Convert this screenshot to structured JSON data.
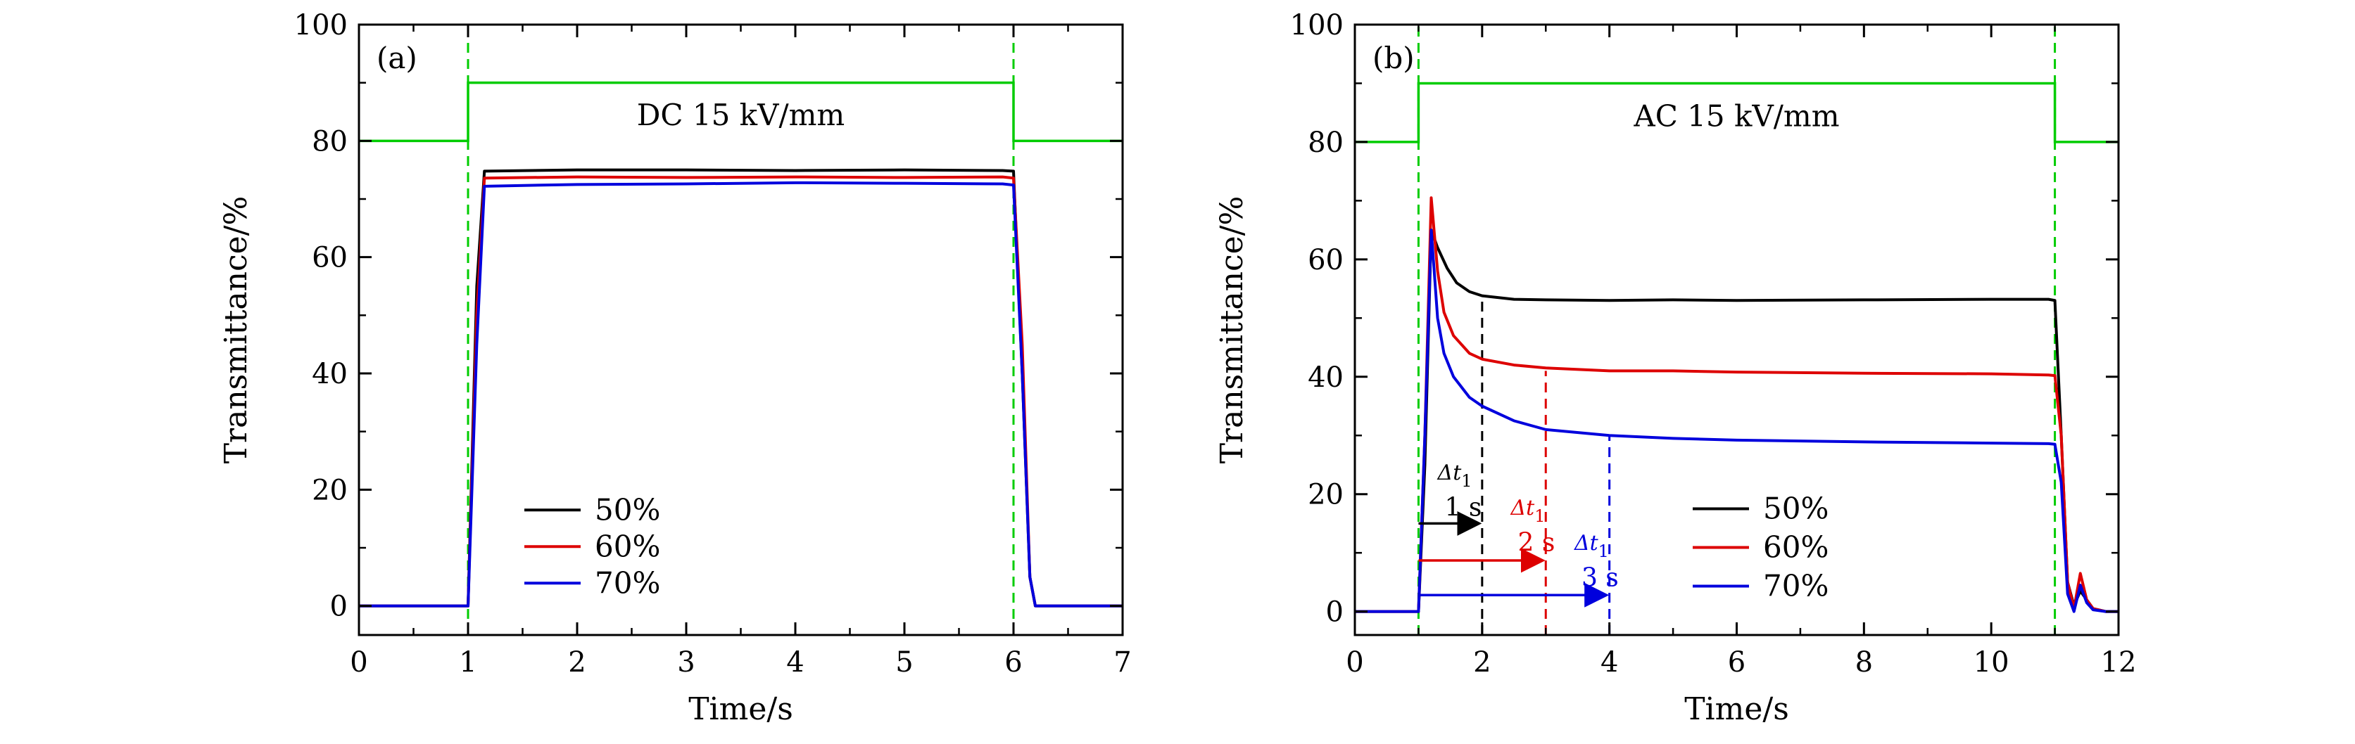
{
  "chart_data": [
    {
      "panel_label": "(a)",
      "type": "line",
      "annotation": "DC 15 kV/mm",
      "xlabel": "Time/s",
      "ylabel": "Transmittance/%",
      "xlim": [
        0,
        7
      ],
      "ylim": [
        -5,
        100
      ],
      "xticks": [
        0,
        1,
        2,
        3,
        4,
        5,
        6,
        7
      ],
      "yticks": [
        0,
        20,
        40,
        60,
        80,
        100
      ],
      "legend": {
        "position": "lower-left",
        "entries": [
          "50%",
          "60%",
          "70%"
        ]
      },
      "voltage_signal": {
        "color": "#00cc00",
        "x": [
          0,
          1,
          1,
          6,
          6,
          7
        ],
        "y": [
          80,
          80,
          90,
          90,
          80,
          80
        ]
      },
      "vertical_markers": [
        {
          "x": 1,
          "color": "#00cc00",
          "style": "dashed"
        },
        {
          "x": 6,
          "color": "#00cc00",
          "style": "dashed"
        }
      ],
      "series": [
        {
          "name": "50%",
          "color": "#000000",
          "x": [
            0,
            1.0,
            1.08,
            1.15,
            2,
            3,
            4,
            5,
            5.9,
            6.0,
            6.08,
            6.15,
            6.2,
            7
          ],
          "y": [
            0,
            0,
            55,
            74.8,
            75,
            75,
            74.9,
            75,
            74.9,
            74.8,
            40,
            5,
            0,
            0
          ]
        },
        {
          "name": "60%",
          "color": "#dd0000",
          "x": [
            0,
            1.0,
            1.08,
            1.15,
            2,
            3,
            4,
            5,
            5.9,
            6.0,
            6.08,
            6.15,
            6.2,
            7
          ],
          "y": [
            0,
            0,
            50,
            73.6,
            73.8,
            73.7,
            73.8,
            73.7,
            73.8,
            73.6,
            45,
            5,
            0,
            0
          ]
        },
        {
          "name": "70%",
          "color": "#0000dd",
          "x": [
            0,
            1.0,
            1.08,
            1.15,
            2,
            3,
            4,
            5,
            5.9,
            6.0,
            6.08,
            6.15,
            6.2,
            7
          ],
          "y": [
            0,
            0,
            45,
            72.2,
            72.5,
            72.6,
            72.8,
            72.7,
            72.6,
            72.4,
            40,
            5,
            0,
            0
          ]
        }
      ]
    },
    {
      "panel_label": "(b)",
      "type": "line",
      "annotation": "AC 15 kV/mm",
      "xlabel": "Time/s",
      "ylabel": "Transmittance/%",
      "xlim": [
        0,
        12
      ],
      "ylim": [
        -4,
        100
      ],
      "xticks": [
        0,
        2,
        4,
        6,
        8,
        10,
        12
      ],
      "yticks": [
        0,
        20,
        40,
        60,
        80,
        100
      ],
      "legend": {
        "position": "lower-right",
        "entries": [
          "50%",
          "60%",
          "70%"
        ]
      },
      "voltage_signal": {
        "color": "#00cc00",
        "x": [
          0,
          1,
          1,
          11,
          11,
          12
        ],
        "y": [
          80,
          80,
          90,
          90,
          80,
          80
        ]
      },
      "vertical_markers": [
        {
          "x": 1,
          "color": "#00cc00",
          "style": "dashed"
        },
        {
          "x": 11,
          "color": "#00cc00",
          "style": "dashed"
        },
        {
          "x": 2,
          "color": "#000000",
          "style": "dashed",
          "y_top": 54
        },
        {
          "x": 3,
          "color": "#dd0000",
          "style": "dashed",
          "y_top": 41
        },
        {
          "x": 4,
          "color": "#0000dd",
          "style": "dashed",
          "y_top": 30
        }
      ],
      "arrows": [
        {
          "color": "#000000",
          "x0": 1,
          "x1": 2,
          "y": 15,
          "label_top": "Δt",
          "label_sub": "1",
          "label_bottom": "1 s",
          "label_x": 1.3,
          "label_y_top": 22.5,
          "label_y_bottom": 17.5
        },
        {
          "color": "#dd0000",
          "x0": 1,
          "x1": 3,
          "y": 8.7,
          "label_top": "Δt",
          "label_sub": "1",
          "label_bottom": "2 s",
          "label_x": 2.45,
          "label_y_top": 16.5,
          "label_y_bottom": 11.5
        },
        {
          "color": "#0000dd",
          "x0": 1,
          "x1": 4,
          "y": 2.8,
          "label_top": "Δt",
          "label_sub": "1",
          "label_bottom": "3 s",
          "label_x": 3.45,
          "label_y_top": 10.5,
          "label_y_bottom": 5.5
        }
      ],
      "series": [
        {
          "name": "50%",
          "color": "#000000",
          "x": [
            0,
            1.0,
            1.1,
            1.2,
            1.3,
            1.45,
            1.6,
            1.8,
            2.0,
            2.5,
            3,
            4,
            5,
            6,
            8,
            10,
            10.9,
            11.0,
            11.1,
            11.2,
            11.3,
            11.4,
            11.5,
            11.6,
            11.8,
            12
          ],
          "y": [
            0,
            0,
            25,
            65,
            62,
            58.5,
            56,
            54.5,
            53.8,
            53.2,
            53.1,
            53.0,
            53.1,
            53.0,
            53.1,
            53.2,
            53.2,
            53.0,
            30,
            5,
            1,
            3.5,
            2,
            0.5,
            0,
            0
          ]
        },
        {
          "name": "60%",
          "color": "#dd0000",
          "x": [
            0,
            1.0,
            1.1,
            1.2,
            1.3,
            1.4,
            1.55,
            1.8,
            2.0,
            2.5,
            3,
            4,
            5,
            6,
            8,
            10,
            10.9,
            11.0,
            11.1,
            11.2,
            11.3,
            11.4,
            11.5,
            11.6,
            11.8,
            12
          ],
          "y": [
            0,
            0,
            30,
            70.5,
            58,
            51,
            47,
            44,
            43,
            42,
            41.5,
            41,
            41,
            40.8,
            40.6,
            40.5,
            40.3,
            40.2,
            30,
            5,
            0.5,
            6.5,
            2,
            0.5,
            0,
            0
          ]
        },
        {
          "name": "70%",
          "color": "#0000dd",
          "x": [
            0,
            1.0,
            1.1,
            1.2,
            1.3,
            1.4,
            1.55,
            1.8,
            2.0,
            2.5,
            3,
            4,
            5,
            6,
            8,
            10,
            10.9,
            11.0,
            11.1,
            11.2,
            11.3,
            11.4,
            11.5,
            11.6,
            11.8,
            12
          ],
          "y": [
            0,
            0,
            30,
            65,
            50,
            44,
            40,
            36.5,
            35,
            32.5,
            31,
            30,
            29.5,
            29.2,
            28.9,
            28.7,
            28.6,
            28.5,
            22,
            3,
            0,
            4.5,
            1.5,
            0.3,
            0,
            0
          ]
        }
      ]
    }
  ]
}
